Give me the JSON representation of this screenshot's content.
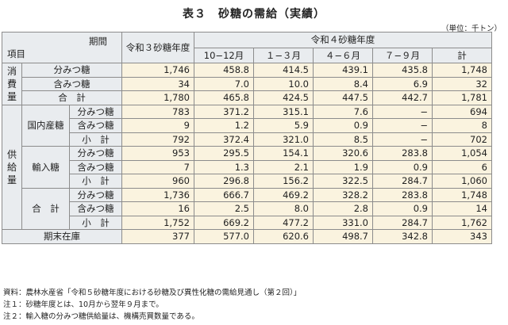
{
  "title": "表３　砂糖の需給（実績）",
  "unit": "（単位：千トン）",
  "header": {
    "period_label": "期間",
    "item_label": "項目",
    "prev_year": "令和３砂糖年度",
    "cur_year": "令和４砂糖年度",
    "quarters": [
      "10−12月",
      "１−３月",
      "４−６月",
      "７−９月",
      "計"
    ]
  },
  "groups": {
    "consumption": "消費量",
    "supply": "供給量"
  },
  "rows": [
    {
      "l1": "",
      "l2": "分みつ糖",
      "values": [
        "1,746",
        "458.8",
        "414.5",
        "439.1",
        "435.8",
        "1,748"
      ]
    },
    {
      "l1": "",
      "l2": "含みつ糖",
      "values": [
        "34",
        "7.0",
        "10.0",
        "8.4",
        "6.9",
        "32"
      ]
    },
    {
      "l1": "合　計",
      "l2": "",
      "values": [
        "1,780",
        "465.8",
        "424.5",
        "447.5",
        "442.7",
        "1,781"
      ]
    },
    {
      "l1": "国内産糖",
      "l2": "分みつ糖",
      "values": [
        "783",
        "371.2",
        "315.1",
        "7.6",
        "−",
        "694"
      ]
    },
    {
      "l1": "",
      "l2": "含みつ糖",
      "values": [
        "9",
        "1.2",
        "5.9",
        "0.9",
        "−",
        "8"
      ]
    },
    {
      "l1": "",
      "l2": "小　計",
      "values": [
        "792",
        "372.4",
        "321.0",
        "8.5",
        "−",
        "702"
      ]
    },
    {
      "l1": "輸入糖",
      "l2": "分みつ糖",
      "values": [
        "953",
        "295.5",
        "154.1",
        "320.6",
        "283.8",
        "1,054"
      ]
    },
    {
      "l1": "",
      "l2": "含みつ糖",
      "values": [
        "7",
        "1.3",
        "2.1",
        "1.9",
        "0.9",
        "6"
      ]
    },
    {
      "l1": "",
      "l2": "小　計",
      "values": [
        "960",
        "296.8",
        "156.2",
        "322.5",
        "284.7",
        "1,060"
      ]
    },
    {
      "l1": "合　計",
      "l2": "分みつ糖",
      "values": [
        "1,736",
        "666.7",
        "469.2",
        "328.2",
        "283.8",
        "1,748"
      ]
    },
    {
      "l1": "",
      "l2": "含みつ糖",
      "values": [
        "16",
        "2.5",
        "8.0",
        "2.8",
        "0.9",
        "14"
      ]
    },
    {
      "l1": "",
      "l2": "小　計",
      "values": [
        "1,752",
        "669.2",
        "477.2",
        "331.0",
        "284.7",
        "1,762"
      ]
    },
    {
      "l1": "期末在庫",
      "l2": "",
      "values": [
        "377",
        "577.0",
        "620.6",
        "498.7",
        "342.8",
        "343"
      ]
    }
  ],
  "notes": [
    "資料：農林水産省「令和５砂糖年度における砂糖及び異性化糖の需給見通し（第２回）」",
    "注１：砂糖年度とは、10月から翌年９月まで。",
    "注２：輸入糖の分みつ糖供給量は、機構売買数量である。"
  ]
}
